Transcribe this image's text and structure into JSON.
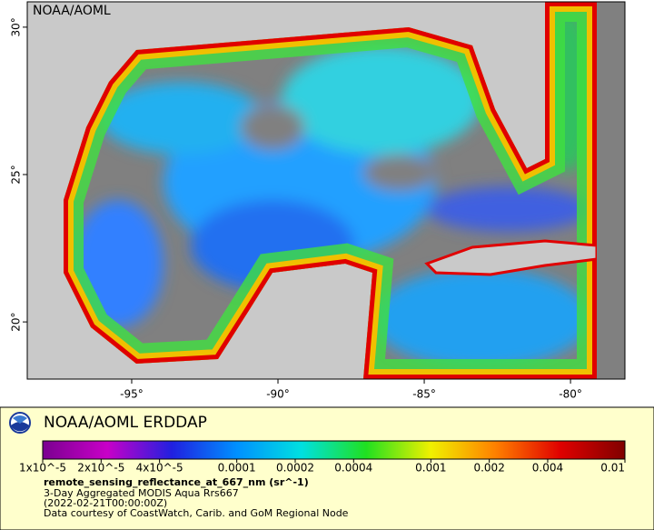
{
  "map": {
    "label": "NOAA/AOML",
    "lonlim": [
      -98.57,
      -78.14
    ],
    "latlim": [
      18.06,
      30.86
    ],
    "xticks": [
      {
        "value": -95,
        "label": "-95°"
      },
      {
        "value": -90,
        "label": "-90°"
      },
      {
        "value": -85,
        "label": "-85°"
      },
      {
        "value": -80,
        "label": "-80°"
      }
    ],
    "yticks": [
      {
        "value": 20,
        "label": "20°"
      },
      {
        "value": 25,
        "label": "25°"
      },
      {
        "value": 30,
        "label": "30°"
      }
    ]
  },
  "legend": {
    "title": "NOAA/AOML ERDDAP",
    "colorbar": {
      "scale": "log",
      "lim": [
        1e-05,
        0.01
      ],
      "colors": [
        "#7a0090",
        "#c800c8",
        "#2020e0",
        "#0090ff",
        "#00e0e0",
        "#20e020",
        "#f0f000",
        "#ff8000",
        "#e00000",
        "#800000"
      ],
      "ticks": [
        {
          "value": 1e-05,
          "label": "1x10^-5"
        },
        {
          "value": 2e-05,
          "label": "2x10^-5"
        },
        {
          "value": 4e-05,
          "label": "4x10^-5"
        },
        0.0001,
        0.0002,
        0.0004,
        0.001,
        0.002,
        0.004,
        0.01
      ]
    },
    "variable": "remote_sensing_reflectance_at_667_nm (sr^-1)",
    "lines": [
      "3-Day Aggregated MODIS Aqua Rrs667",
      "(2022-02-21T00:00:00Z)",
      "Data courtesy of CoastWatch, Carib. and GoM Regional Node"
    ]
  }
}
